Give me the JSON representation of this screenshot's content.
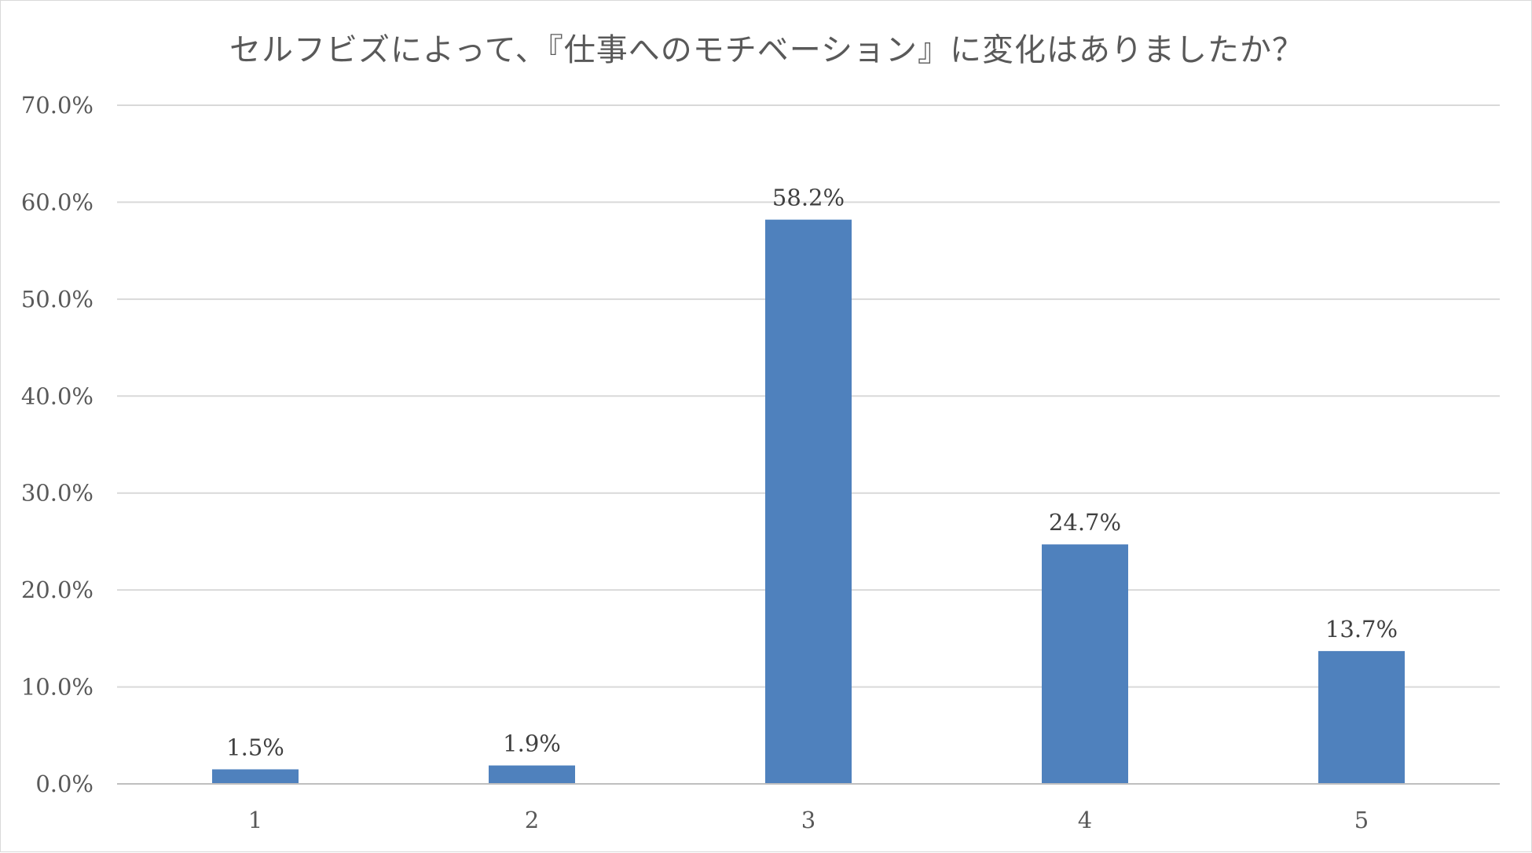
{
  "chart_data": {
    "type": "bar",
    "title": "セルフビズによって、『仕事へのモチベーション』に変化はありましたか？",
    "xlabel": "",
    "ylabel": "",
    "categories": [
      "1",
      "2",
      "3",
      "4",
      "5"
    ],
    "values": [
      1.5,
      1.9,
      58.2,
      24.7,
      13.7
    ],
    "data_labels": [
      "1.5%",
      "1.9%",
      "58.2%",
      "24.7%",
      "13.7%"
    ],
    "ylim": [
      0,
      70
    ],
    "yticks": [
      0,
      10,
      20,
      30,
      40,
      50,
      60,
      70
    ],
    "ytick_labels": [
      "0.0%",
      "10.0%",
      "20.0%",
      "30.0%",
      "40.0%",
      "50.0%",
      "60.0%",
      "70.0%"
    ],
    "grid": true,
    "legend": "none",
    "colors": {
      "bar": "#4f81bd",
      "grid": "#d9d9d9",
      "axis": "#bfbfbf"
    }
  }
}
